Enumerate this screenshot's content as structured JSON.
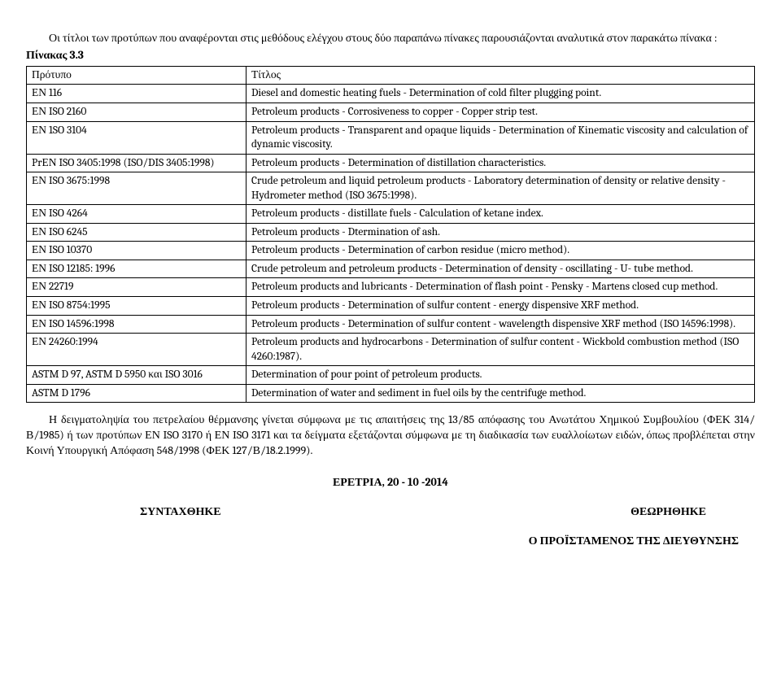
{
  "intro": {
    "line1": "Οι τίτλοι των προτύπων που αναφέρονται στις μεθόδους ελέγχου στους δύο παραπάνω πίνακες παρουσιάζονται αναλυτικά στον παρακάτω πίνακα :",
    "pinakas": "Πίνακας 3.3"
  },
  "table": {
    "header": {
      "c1": "Πρότυπο",
      "c2": "Τίτλος"
    },
    "rows": [
      {
        "c1": "ΕΝ 116",
        "c2": "Diesel and domestic heating fuels - Determination of cold filter plugging point."
      },
      {
        "c1": "ΕΝ ISO 2160",
        "c2": "Petroleum products - Corrosiveness to copper - Copper strip test."
      },
      {
        "c1": "ΕΝ 1SO 3104",
        "c2": "Petroleum products - Transparent and opaque liquids - Determination of Kinematic viscosity and calculation of dynamic viscosity."
      },
      {
        "c1": "PrΕΝ ISO 3405:1998 (ISO/DIS 3405:1998)",
        "c2": "Petroleum products - Determination of distillation characteristics."
      },
      {
        "c1": "ΕΝ ISO 3675:1998",
        "c2": "Crude petroleum and liquid petroleum products - Laboratory determination of density or relative density - Hydrometer method (ISO 3675:1998)."
      },
      {
        "c1": "ΕΝ ISO 4264",
        "c2": "Petroleum products - distillate fuels - Calculation of ketane index."
      },
      {
        "c1": "ΕΝ ISO 6245",
        "c2": "Petroleum products - Dtermination of ash."
      },
      {
        "c1": "ΕΝ ISO 10370",
        "c2": "Petroleum products - Determination of carbon residue (micro method)."
      },
      {
        "c1": "ΕΝ ISO 12185: 1996",
        "c2": "Crude petroleum and petroleum products - Determination of density - oscillating - U- tube method."
      },
      {
        "c1": "ΕΝ 22719",
        "c2": "Petroleum products and lubricants - Determination of flash point - Pensky - Martens closed cup method."
      },
      {
        "c1": "ΕΝ ISO 8754:1995",
        "c2": "Petroleum products - Determination of sulfur content - energy dispensive XRF method."
      },
      {
        "c1": "ΕΝ ISO 14596:1998",
        "c2": "Petroleum products - Determination of sulfur content - wavelength dispensive XRF method (ISO 14596:1998)."
      },
      {
        "c1": "ΕΝ 24260:1994",
        "c2": "Petroleum products and hydrocarbons - Determination of sulfur content - Wickbold combustion method (ISO 4260:1987)."
      },
      {
        "c1": "ASTM D 97, ASTM D 5950 και ISO 3016",
        "c2": "Determination of pour point of petroleum products."
      },
      {
        "c1": "ASTM D 1796",
        "c2": "Determination of water and sediment in fuel oils by the centrifuge method."
      }
    ]
  },
  "post": "Η δειγματοληψία του πετρελαίου θέρμανσης γίνεται σύμφωνα με τις απαιτήσεις της 13/85 απόφασης του Ανωτάτου Χημικού Συμβουλίου (ΦΕΚ 314/Β/1985) ή των προτύπων ΕΝ ISO 3170 ή ΕΝ ISO 3171 και τα δείγματα εξετάζονται σύμφωνα με τη διαδικασία των ευαλλοίωτων ειδών, όπως προβλέπεται στην Κοινή Υπουργική Απόφαση 548/1998 (ΦΕΚ 127/Β/18.2.1999).",
  "dateLine": "ΕΡΕΤΡΙΑ,   20 - 10 -2014",
  "sig": {
    "left": "ΣΥΝΤΑΧΘΗΚΕ",
    "right": "ΘΕΩΡΗΘΗΚΕ"
  },
  "director": "Ο  ΠΡΟΪΣΤΑΜΕΝΟΣ ΤΗΣ ΔΙΕΥΘΥΝΣΗΣ"
}
